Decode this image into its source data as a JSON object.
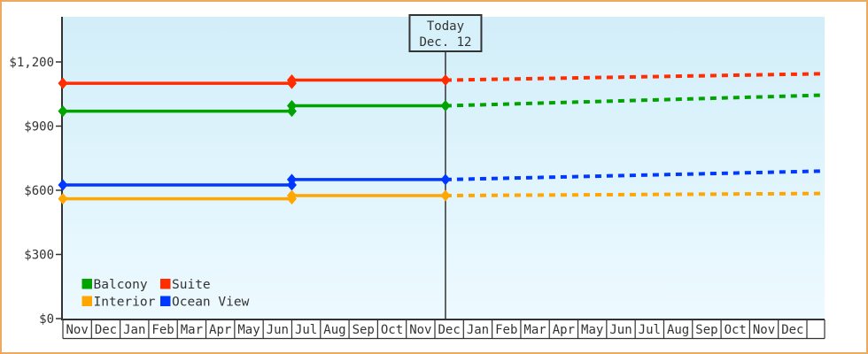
{
  "frame": {
    "border_color": "#ecaa5e",
    "background": "#ffffff"
  },
  "chart_data": {
    "type": "line",
    "title": "",
    "xlabel": "",
    "ylabel": "",
    "ylim": [
      0,
      1200
    ],
    "grid": false,
    "axis_color": "#333333",
    "plot_bg_gradient": [
      "#d2eef9",
      "#edfaff"
    ],
    "y_ticks": [
      {
        "label": "$0",
        "value": 0
      },
      {
        "label": "$300",
        "value": 300
      },
      {
        "label": "$600",
        "value": 600
      },
      {
        "label": "$900",
        "value": 900
      },
      {
        "label": "$1,200",
        "value": 1200
      }
    ],
    "categories": [
      "Nov",
      "Dec",
      "Jan",
      "Feb",
      "Mar",
      "Apr",
      "May",
      "Jun",
      "Jul",
      "Aug",
      "Sep",
      "Oct",
      "Nov",
      "Dec",
      "Jan",
      "Feb",
      "Mar",
      "Apr",
      "May",
      "Jun",
      "Jul",
      "Aug",
      "Sep",
      "Oct",
      "Nov",
      "Dec"
    ],
    "annotation": {
      "line1": "Today",
      "line2": "Dec. 12",
      "month_index": 13,
      "day_fraction": 0.37,
      "box_fill": "#d7f1fb",
      "box_border": "#333333"
    },
    "price_change_month_index": 8,
    "series": [
      {
        "name": "Suite",
        "color": "#ff2d00",
        "initial_price": 1100,
        "current_price": 1115,
        "forecast_end_price": 1145
      },
      {
        "name": "Balcony",
        "color": "#00a300",
        "initial_price": 970,
        "current_price": 995,
        "forecast_end_price": 1045
      },
      {
        "name": "Ocean View",
        "color": "#0038ff",
        "initial_price": 625,
        "current_price": 650,
        "forecast_end_price": 690
      },
      {
        "name": "Interior",
        "color": "#ffa600",
        "initial_price": 560,
        "current_price": 575,
        "forecast_end_price": 585
      }
    ],
    "legend": {
      "rows": [
        [
          "Balcony",
          "Suite"
        ],
        [
          "Interior",
          "Ocean View"
        ]
      ]
    }
  }
}
